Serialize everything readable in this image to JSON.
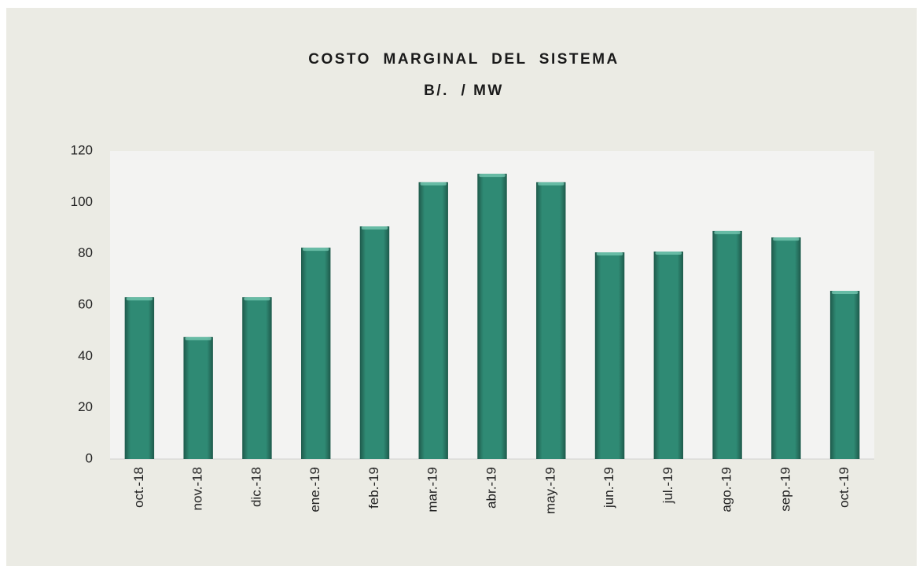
{
  "chart_data": {
    "type": "bar",
    "title": "COSTO  MARGINAL  DEL  SISTEMA",
    "subtitle": "B/.  / MW",
    "categories": [
      "oct.-18",
      "nov.-18",
      "dic.-18",
      "ene.-19",
      "feb.-19",
      "mar.-19",
      "abr.-19",
      "may.-19",
      "jun.-19",
      "jul.-19",
      "ago.-19",
      "sep.-19",
      "oct.-19"
    ],
    "values": [
      63,
      47.5,
      63,
      82.3,
      90.6,
      107.8,
      111.1,
      107.8,
      80.5,
      80.8,
      88.8,
      86.3,
      65.5
    ],
    "color": "#2f8a74",
    "ylim": [
      0,
      120
    ],
    "yticks": [
      0,
      20,
      40,
      60,
      80,
      100,
      120
    ],
    "grid": false
  }
}
